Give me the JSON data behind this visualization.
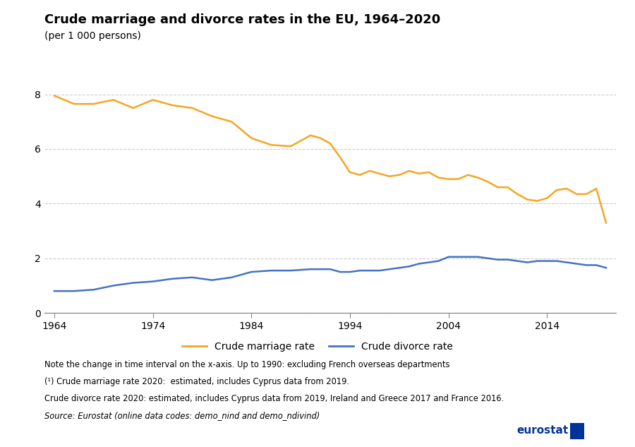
{
  "title": "Crude marriage and divorce rates in the EU, 1964–2020",
  "subtitle": "(per 1 000 persons)",
  "marriage_years": [
    1964,
    1966,
    1968,
    1970,
    1972,
    1974,
    1976,
    1978,
    1980,
    1982,
    1984,
    1986,
    1988,
    1990,
    1991,
    1992,
    1993,
    1994,
    1995,
    1996,
    1997,
    1998,
    1999,
    2000,
    2001,
    2002,
    2003,
    2004,
    2005,
    2006,
    2007,
    2008,
    2009,
    2010,
    2011,
    2012,
    2013,
    2014,
    2015,
    2016,
    2017,
    2018,
    2019,
    2020
  ],
  "marriage_values": [
    7.95,
    7.65,
    7.65,
    7.8,
    7.5,
    7.8,
    7.6,
    7.5,
    7.2,
    7.0,
    6.4,
    6.15,
    6.1,
    6.5,
    6.4,
    6.2,
    5.7,
    5.15,
    5.05,
    5.2,
    5.1,
    5.0,
    5.05,
    5.2,
    5.1,
    5.15,
    4.95,
    4.9,
    4.9,
    5.05,
    4.95,
    4.8,
    4.6,
    4.6,
    4.35,
    4.15,
    4.1,
    4.2,
    4.5,
    4.55,
    4.35,
    4.35,
    4.55,
    3.3
  ],
  "divorce_years": [
    1964,
    1966,
    1968,
    1970,
    1972,
    1974,
    1976,
    1978,
    1980,
    1982,
    1984,
    1986,
    1988,
    1990,
    1991,
    1992,
    1993,
    1994,
    1995,
    1996,
    1997,
    1998,
    1999,
    2000,
    2001,
    2002,
    2003,
    2004,
    2005,
    2006,
    2007,
    2008,
    2009,
    2010,
    2011,
    2012,
    2013,
    2014,
    2015,
    2016,
    2017,
    2018,
    2019,
    2020
  ],
  "divorce_values": [
    0.8,
    0.8,
    0.85,
    1.0,
    1.1,
    1.15,
    1.25,
    1.3,
    1.2,
    1.3,
    1.5,
    1.55,
    1.55,
    1.6,
    1.6,
    1.6,
    1.5,
    1.5,
    1.55,
    1.55,
    1.55,
    1.6,
    1.65,
    1.7,
    1.8,
    1.85,
    1.9,
    2.05,
    2.05,
    2.05,
    2.05,
    2.0,
    1.95,
    1.95,
    1.9,
    1.85,
    1.9,
    1.9,
    1.9,
    1.85,
    1.8,
    1.75,
    1.75,
    1.65
  ],
  "marriage_color": "#F5A623",
  "divorce_color": "#4472C4",
  "title_fontsize": 13,
  "subtitle_fontsize": 10,
  "xlim": [
    1963,
    2021
  ],
  "ylim": [
    0,
    9
  ],
  "yticks": [
    0,
    2,
    4,
    6,
    8
  ],
  "xticks": [
    1964,
    1974,
    1984,
    1994,
    2004,
    2014
  ],
  "grid_color": "#cccccc",
  "note_line1": "Note the change in time interval on the x-axis. Up to 1990: excluding French overseas departments",
  "note_line2": "(¹) Crude marriage rate 2020:  estimated, includes Cyprus data from 2019.",
  "note_line3": "Crude divorce rate 2020: estimated, includes Cyprus data from 2019, Ireland and Greece 2017 and France 2016.",
  "note_line4": "Source: Eurostat (online data codes: demo_nind and demo_ndivind)",
  "legend_marriage": "Crude marriage rate",
  "legend_divorce": "Crude divorce rate",
  "eurostat_color": "#003399"
}
